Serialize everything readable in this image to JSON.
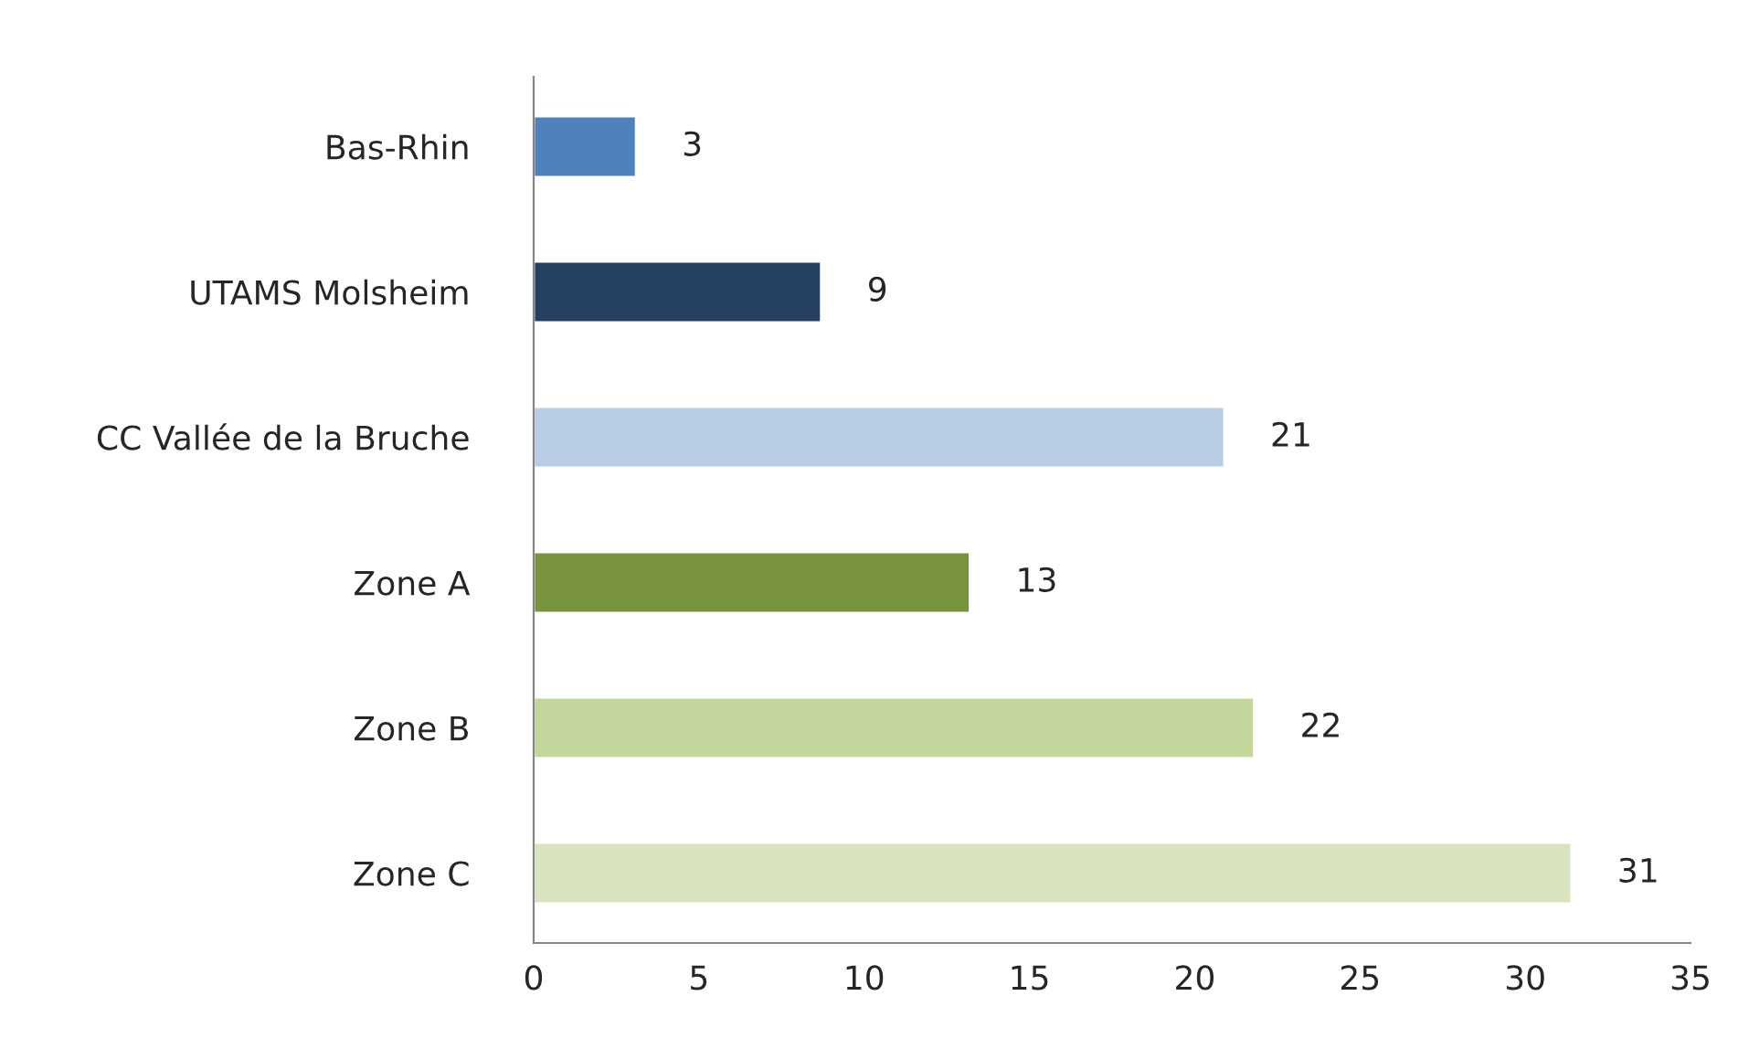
{
  "chart_data": {
    "type": "bar",
    "orientation": "horizontal",
    "categories": [
      "Bas-Rhin",
      "UTAMS Molsheim",
      "CC Vallée de la Bruche",
      "Zone A",
      "Zone B",
      "Zone C"
    ],
    "values": [
      3.1,
      8.7,
      20.9,
      13.2,
      21.8,
      31.4
    ],
    "value_labels": [
      "3",
      "9",
      "21",
      "13",
      "22",
      "31"
    ],
    "colors": [
      "#4f81bd",
      "#254061",
      "#b9cde5",
      "#77933c",
      "#c3d69b",
      "#d7e4bd"
    ],
    "xlim": [
      0,
      35
    ],
    "xticks": [
      0,
      5,
      10,
      15,
      20,
      25,
      30,
      35
    ],
    "grid": false,
    "legend": false
  }
}
